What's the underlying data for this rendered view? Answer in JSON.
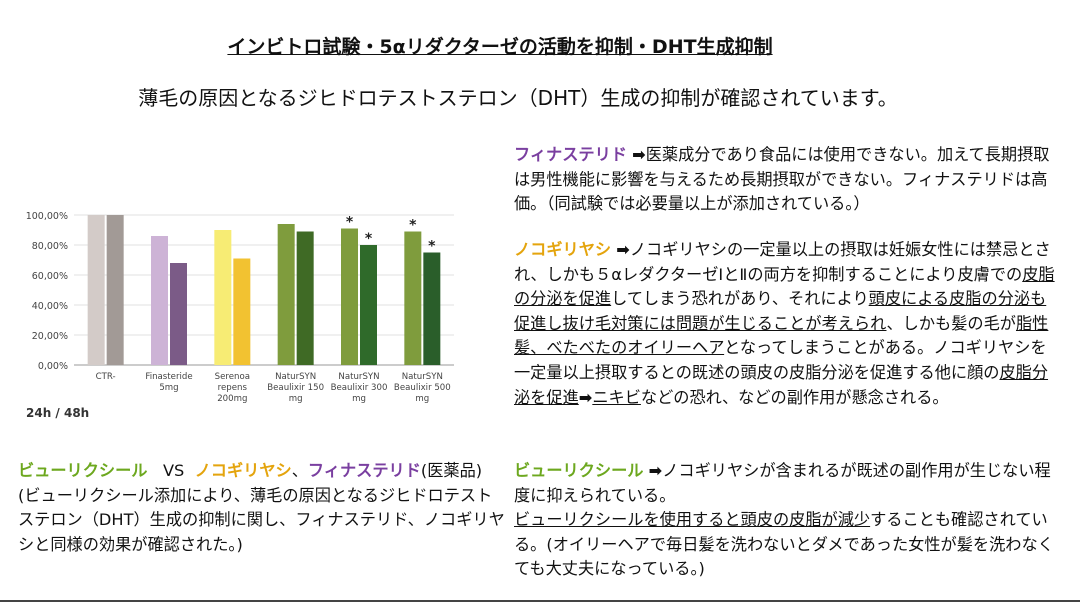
{
  "title": "インビトロ試験・5αリダクターゼの活動を抑制・DHT生成抑制",
  "subtitle": "薄毛の原因となるジヒドロテストステロン（DHT）生成の抑制が確認されています。",
  "period_label": "24h / 48h",
  "chart_data": {
    "type": "bar",
    "categories": [
      "CTR-",
      "Finasteride 5mg",
      "Serenoa repens 200mg",
      "NaturSYN Beaulixir 150 mg",
      "NaturSYN Beaulixir 300 mg",
      "NaturSYN Beaulixir 500 mg"
    ],
    "category_lines": [
      [
        "CTR-"
      ],
      [
        "Finasteride",
        "5mg"
      ],
      [
        "Serenoa",
        "repens",
        "200mg"
      ],
      [
        "NaturSYN",
        "Beaulixir 150",
        "mg"
      ],
      [
        "NaturSYN",
        "Beaulixir 300",
        "mg"
      ],
      [
        "NaturSYN",
        "Beaulixir 500",
        "mg"
      ]
    ],
    "series": [
      {
        "values": [
          100,
          86,
          90,
          94,
          91,
          89
        ]
      },
      {
        "values": [
          100,
          68,
          71,
          89,
          80,
          75
        ]
      }
    ],
    "colors": [
      [
        "#d3cbc8",
        "#a29a96"
      ],
      [
        "#cdb3d6",
        "#7b5b87"
      ],
      [
        "#f7ec74",
        "#f2c231"
      ],
      [
        "#7f9c3d",
        "#3f6a25"
      ],
      [
        "#7f9c3d",
        "#2f6a2a"
      ],
      [
        "#7f9c3d",
        "#2a5e2a"
      ]
    ],
    "significance": [
      [
        false,
        false
      ],
      [
        false,
        false
      ],
      [
        false,
        false
      ],
      [
        false,
        false
      ],
      [
        true,
        true
      ],
      [
        true,
        true
      ]
    ],
    "ylim": [
      0,
      100
    ],
    "yticks": [
      "0,00%",
      "20,00%",
      "40,00%",
      "60,00%",
      "80,00%",
      "100,00%"
    ],
    "grid": true,
    "xlabel": "",
    "ylabel": ""
  },
  "right": {
    "finasteride": {
      "name": "フィナステリド",
      "arrow": "➡",
      "text": "医薬成分であり食品には使用できない。加えて長期摂取は男性機能に影響を与えるため長期摂取ができない。フィナステリドは高価。（同試験では必要量以上が添加されている。）"
    },
    "saw_palmetto": {
      "name": "ノコギリヤシ",
      "arrow": "➡",
      "t1": "ノコギリヤシの一定量以上の摂取は妊娠女性には禁忌とされ、しかも５αレダクターゼⅠとⅡの両方を抑制することにより皮膚での",
      "u1": "皮脂の分泌を促進",
      "t2": "してしまう恐れがあり、それにより",
      "u2": "頭皮による皮脂の分泌も促進し抜け毛対策には問題が生じることが考えられ",
      "t3": "、しかも髪の毛が",
      "u3": "脂性髪、べたべたのオイリーヘア",
      "t4": "となってしまうことがある。ノコギリヤシを一定量以上摂取するとの既述の頭皮の皮脂分泌を促進する他に顔の",
      "u4": "皮脂分泌を促進",
      "arrow2": "➡",
      "u5": "ニキビ",
      "t5": "などの恐れ、などの副作用が懸念される。"
    },
    "beaulixir": {
      "name": "ビューリクシール",
      "arrow": "➡",
      "t1": "ノコギリヤシが含まれるが既述の副作用が生じない程度に抑えられている。",
      "u1": "ビューリクシールを使用すると頭皮の皮脂が減少",
      "t2": "することも確認されている。(オイリーヘアで毎日髪を洗わないとダメであった女性が髪を洗わなくても大丈夫になっている。)"
    }
  },
  "left": {
    "name1": "ビューリクシール",
    "vs": "VS",
    "name2": "ノコギリヤシ",
    "comma": "、",
    "name3": "フィナステリド",
    "note": "(医薬品)",
    "body": "(ビューリクシール添加により、薄毛の原因となるジヒドロテストステロン（DHT）生成の抑制に関し、フィナステリド、ノコギリヤシと同様の効果が確認された。)"
  }
}
